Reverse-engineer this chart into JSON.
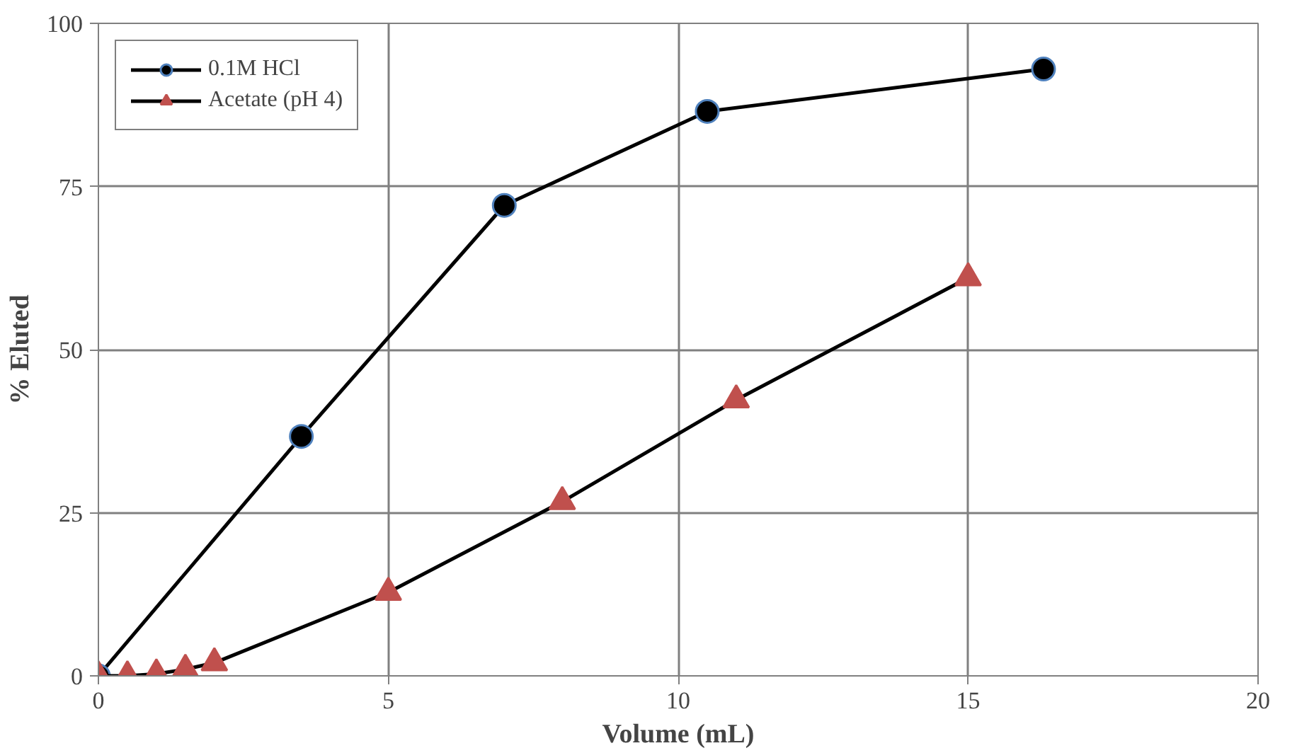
{
  "chart_data": {
    "type": "line",
    "xlabel": "Volume (mL)",
    "ylabel": "% Eluted",
    "xlim": [
      0,
      20
    ],
    "xticks": [
      0,
      5,
      10,
      15,
      20
    ],
    "ylim": [
      0,
      100
    ],
    "yticks": [
      0,
      25,
      50,
      75,
      100
    ],
    "grid": true,
    "legend": "top left",
    "line_style": "solid",
    "series": [
      {
        "name": "0.1M HCl",
        "color": "#000000",
        "marker": "circle",
        "x": [
          0,
          3.5,
          7,
          10.5,
          16.3
        ],
        "values": [
          0,
          36.7,
          72.1,
          86.5,
          93
        ]
      },
      {
        "name": "Acetate (pH 4)",
        "color": "#c0504d",
        "marker": "triangle",
        "x": [
          0,
          0.5,
          1,
          1.5,
          2,
          5,
          8,
          11,
          15
        ],
        "values": [
          0,
          0,
          0.3,
          1,
          2,
          12.8,
          26.7,
          42.3,
          61
        ]
      }
    ]
  }
}
